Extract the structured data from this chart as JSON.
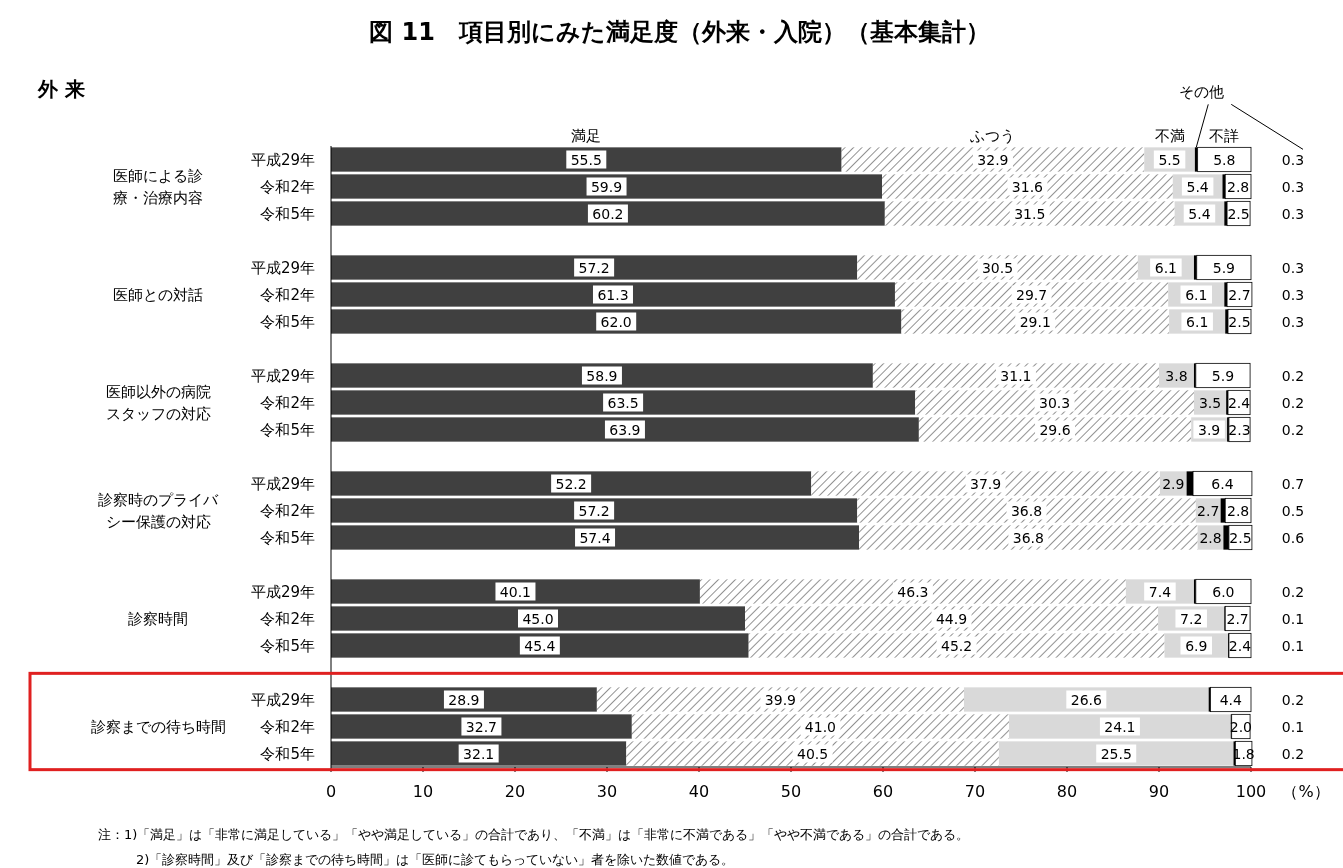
{
  "chart_data": {
    "type": "bar",
    "orientation": "horizontal",
    "stacked": true,
    "title": "図 11　項目別にみた満足度（外来・入院）（基本集計）",
    "subtitle": "外 来",
    "xlabel": "（%）",
    "categories": [
      "平成29年",
      "令和2年",
      "令和5年",
      null,
      "平成29年",
      "令和2年",
      "令和5年",
      null,
      "平成29年",
      "令和2年",
      "令和5年",
      null,
      "平成29年",
      "令和2年",
      "令和5年",
      null,
      "平成29年",
      "令和2年",
      "令和5年",
      null,
      "平成29年",
      "令和2年",
      "令和5年"
    ],
    "xlim": [
      0,
      100
    ],
    "xticks": [
      0,
      10,
      20,
      30,
      40,
      50,
      60,
      70,
      80,
      90,
      100
    ],
    "grid": false,
    "legend": false,
    "series": [
      {
        "name": "満足",
        "color": "#404040",
        "values": [
          55.5,
          59.9,
          60.2,
          null,
          57.2,
          61.3,
          62.0,
          null,
          58.9,
          63.5,
          63.9,
          null,
          52.2,
          57.2,
          57.4,
          null,
          40.1,
          45.0,
          45.4,
          null,
          28.9,
          32.7,
          32.1
        ],
        "value_labels": [
          "55.5",
          "59.9",
          "60.2",
          null,
          "57.2",
          "61.3",
          "62.0",
          null,
          "58.9",
          "63.5",
          "63.9",
          null,
          "52.2",
          "57.2",
          "57.4",
          null,
          "40.1",
          "45.0",
          "45.4",
          null,
          "28.9",
          "32.7",
          "32.1"
        ]
      },
      {
        "name": "ふつう",
        "color": "#6e6e6e",
        "values": [
          32.9,
          31.6,
          31.5,
          null,
          30.5,
          29.7,
          29.1,
          null,
          31.1,
          30.3,
          29.6,
          null,
          37.9,
          36.8,
          36.8,
          null,
          46.3,
          44.9,
          45.2,
          null,
          39.9,
          41.0,
          40.5
        ],
        "value_labels": [
          "32.9",
          "31.6",
          "31.5",
          null,
          "30.5",
          "29.7",
          "29.1",
          null,
          "31.1",
          "30.3",
          "29.6",
          null,
          "37.9",
          "36.8",
          "36.8",
          null,
          "46.3",
          "44.9",
          "45.2",
          null,
          "39.9",
          "41.0",
          "40.5"
        ]
      },
      {
        "name": "不満",
        "color": "#d9d9d9",
        "values": [
          5.5,
          5.4,
          5.4,
          null,
          6.1,
          6.1,
          6.1,
          null,
          3.8,
          3.5,
          3.9,
          null,
          2.9,
          2.7,
          2.8,
          null,
          7.4,
          7.2,
          6.9,
          null,
          26.6,
          24.1,
          25.5
        ],
        "value_labels": [
          "5.5",
          "5.4",
          "5.4",
          null,
          "6.1",
          "6.1",
          "6.1",
          null,
          "3.8",
          "3.5",
          "3.9",
          null,
          "2.9",
          "2.7",
          "2.8",
          null,
          "7.4",
          "7.2",
          "6.9",
          null,
          "26.6",
          "24.1",
          "25.5"
        ]
      },
      {
        "name": "その他",
        "color": "#000000",
        "values": [
          0.3,
          0.3,
          0.3,
          null,
          0.3,
          0.3,
          0.3,
          null,
          0.2,
          0.2,
          0.2,
          null,
          0.7,
          0.5,
          0.6,
          null,
          0.2,
          0.1,
          0.1,
          null,
          0.2,
          0.1,
          0.2
        ],
        "value_labels": [
          "0.3",
          "0.3",
          "0.3",
          null,
          "0.3",
          "0.3",
          "0.3",
          null,
          "0.2",
          "0.2",
          "0.2",
          null,
          "0.7",
          "0.5",
          "0.6",
          null,
          "0.2",
          "0.1",
          "0.1",
          null,
          "0.2",
          "0.1",
          "0.2"
        ]
      },
      {
        "name": "不詳",
        "color": "#ffffff",
        "values": [
          5.8,
          2.8,
          2.5,
          null,
          5.9,
          2.7,
          2.5,
          null,
          5.9,
          2.4,
          2.3,
          null,
          6.4,
          2.8,
          2.5,
          null,
          6.0,
          2.7,
          2.4,
          null,
          4.4,
          2.0,
          1.8
        ],
        "value_labels": [
          "5.8",
          "2.8",
          "2.5",
          null,
          "5.9",
          "2.7",
          "2.5",
          null,
          "5.9",
          "2.4",
          "2.3",
          null,
          "6.4",
          "2.8",
          "2.5",
          null,
          "6.0",
          "2.7",
          "2.4",
          null,
          "4.4",
          "2.0",
          "1.8"
        ]
      }
    ],
    "annotations": [
      "医師による診療・治療内容",
      "医師との対話",
      "医師以外の病院スタッフの対応",
      "診察時のプライバシー保護の対応",
      "診察時間",
      "診察までの待ち時間",
      "注：1)「満足」は「非常に満足している」「やや満足している」の合計であり、「不満」は「非常に不満である」「やや不満である」の合計である。",
      "2)「診察時間」及び「診察までの待ち時間」は「医師に診てもらっていない」者を除いた数値である。"
    ]
  }
}
